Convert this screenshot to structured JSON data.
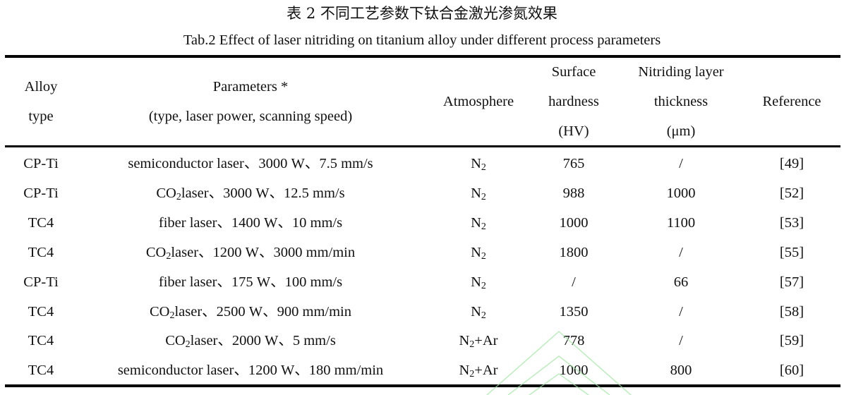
{
  "title_cn": "表 2  不同工艺参数下钛合金激光渗氮效果",
  "title_en": "Tab.2 Effect of laser nitriding on titanium alloy under different process parameters",
  "headers": {
    "alloy": [
      "Alloy",
      "type"
    ],
    "params": [
      "Parameters *",
      "(type, laser power, scanning speed)"
    ],
    "atmosphere": [
      "Atmosphere"
    ],
    "hardness": [
      "Surface",
      "hardness",
      "(HV)"
    ],
    "thickness": [
      "Nitriding layer",
      "thickness",
      "(μm)"
    ],
    "reference": [
      "Reference"
    ]
  },
  "rows": [
    {
      "alloy": "CP-Ti",
      "param": {
        "chem": "",
        "sub": "",
        "rest": "semiconductor laser、3000 W、7.5 mm/s"
      },
      "atm": {
        "base": "N",
        "sub": "2",
        "rest": ""
      },
      "hardness": "765",
      "thickness": "/",
      "ref": "[49]"
    },
    {
      "alloy": "CP-Ti",
      "param": {
        "chem": "CO",
        "sub": "2",
        "rest": "laser、3000 W、12.5 mm/s"
      },
      "atm": {
        "base": "N",
        "sub": "2",
        "rest": ""
      },
      "hardness": "988",
      "thickness": "1000",
      "ref": "[52]"
    },
    {
      "alloy": "TC4",
      "param": {
        "chem": "",
        "sub": "",
        "rest": "fiber laser、1400 W、10 mm/s"
      },
      "atm": {
        "base": "N",
        "sub": "2",
        "rest": ""
      },
      "hardness": "1000",
      "thickness": "1100",
      "ref": "[53]"
    },
    {
      "alloy": "TC4",
      "param": {
        "chem": "CO",
        "sub": "2",
        "rest": "laser、1200 W、3000 mm/min"
      },
      "atm": {
        "base": "N",
        "sub": "2",
        "rest": ""
      },
      "hardness": "1800",
      "thickness": "/",
      "ref": "[55]"
    },
    {
      "alloy": "CP-Ti",
      "param": {
        "chem": "",
        "sub": "",
        "rest": "fiber laser、175 W、100 mm/s"
      },
      "atm": {
        "base": "N",
        "sub": "2",
        "rest": ""
      },
      "hardness": "/",
      "thickness": "66",
      "ref": "[57]"
    },
    {
      "alloy": "TC4",
      "param": {
        "chem": "CO",
        "sub": "2",
        "rest": "laser、2500 W、900 mm/min"
      },
      "atm": {
        "base": "N",
        "sub": "2",
        "rest": ""
      },
      "hardness": "1350",
      "thickness": "/",
      "ref": "[58]"
    },
    {
      "alloy": "TC4",
      "param": {
        "chem": "CO",
        "sub": "2",
        "rest": "laser、2000 W、5 mm/s"
      },
      "atm": {
        "base": "N",
        "sub": "2",
        "rest": "+Ar"
      },
      "hardness": "778",
      "thickness": "/",
      "ref": "[59]"
    },
    {
      "alloy": "TC4",
      "param": {
        "chem": "",
        "sub": "",
        "rest": "semiconductor laser、1200 W、180 mm/min"
      },
      "atm": {
        "base": "N",
        "sub": "2",
        "rest": "+Ar"
      },
      "hardness": "1000",
      "thickness": "800",
      "ref": "[60]"
    }
  ],
  "watermark_color": "#9ee6a0"
}
